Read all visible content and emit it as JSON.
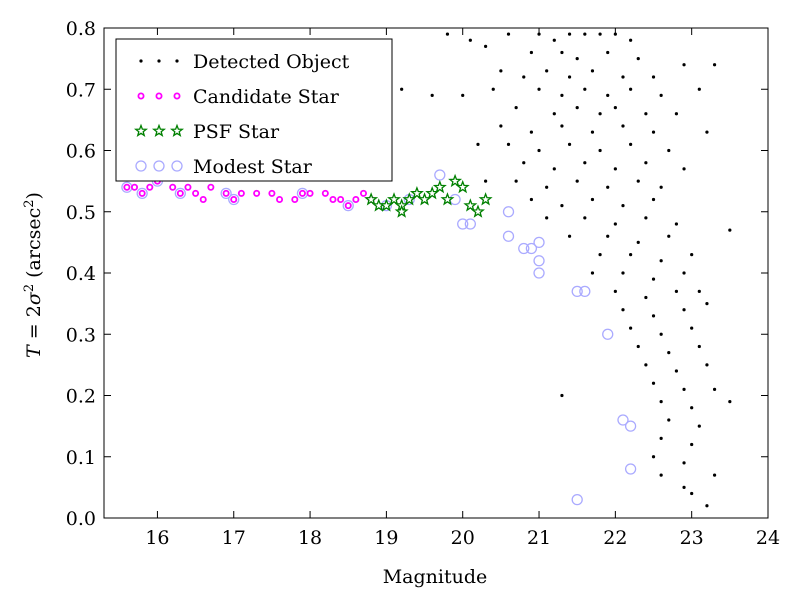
{
  "chart_data": {
    "type": "scatter",
    "title": "",
    "xlabel": "Magnitude",
    "ylabel": "T = 2σ² (arcsec²)",
    "ylabel_parts": {
      "lhs": "T",
      "eq": " = 2",
      "sigma": "σ",
      "sq": "2",
      "open": " (arcsec",
      "sq2": "2",
      "close": ")"
    },
    "xlim": [
      15.3,
      24
    ],
    "ylim": [
      0.0,
      0.8
    ],
    "xticks": [
      16,
      17,
      18,
      19,
      20,
      21,
      22,
      23,
      24
    ],
    "yticks": [
      0.0,
      0.1,
      0.2,
      0.3,
      0.4,
      0.5,
      0.6,
      0.7,
      0.8
    ],
    "grid": false,
    "legend_position": "top-left",
    "series": [
      {
        "name": "Detected Object",
        "marker": "dot",
        "color": "#000000",
        "points": [
          [
            19.8,
            0.79
          ],
          [
            20.1,
            0.78
          ],
          [
            20.3,
            0.77
          ],
          [
            20.6,
            0.79
          ],
          [
            21.0,
            0.79
          ],
          [
            21.2,
            0.78
          ],
          [
            21.4,
            0.79
          ],
          [
            21.6,
            0.79
          ],
          [
            21.8,
            0.79
          ],
          [
            22.0,
            0.79
          ],
          [
            22.2,
            0.78
          ],
          [
            20.9,
            0.76
          ],
          [
            21.3,
            0.76
          ],
          [
            21.5,
            0.75
          ],
          [
            21.9,
            0.76
          ],
          [
            22.3,
            0.75
          ],
          [
            22.9,
            0.74
          ],
          [
            23.3,
            0.74
          ],
          [
            20.5,
            0.73
          ],
          [
            20.8,
            0.72
          ],
          [
            21.1,
            0.73
          ],
          [
            21.4,
            0.72
          ],
          [
            21.7,
            0.73
          ],
          [
            22.1,
            0.72
          ],
          [
            22.5,
            0.72
          ],
          [
            19.2,
            0.7
          ],
          [
            19.6,
            0.69
          ],
          [
            20.0,
            0.69
          ],
          [
            20.4,
            0.7
          ],
          [
            21.0,
            0.7
          ],
          [
            21.3,
            0.69
          ],
          [
            21.6,
            0.7
          ],
          [
            21.9,
            0.69
          ],
          [
            22.2,
            0.7
          ],
          [
            22.6,
            0.69
          ],
          [
            23.1,
            0.7
          ],
          [
            20.7,
            0.67
          ],
          [
            21.2,
            0.66
          ],
          [
            21.5,
            0.67
          ],
          [
            21.8,
            0.66
          ],
          [
            22.0,
            0.67
          ],
          [
            22.4,
            0.66
          ],
          [
            22.8,
            0.66
          ],
          [
            20.5,
            0.64
          ],
          [
            20.9,
            0.63
          ],
          [
            21.3,
            0.64
          ],
          [
            21.7,
            0.63
          ],
          [
            22.1,
            0.64
          ],
          [
            22.5,
            0.63
          ],
          [
            23.2,
            0.63
          ],
          [
            20.2,
            0.61
          ],
          [
            20.6,
            0.61
          ],
          [
            21.0,
            0.6
          ],
          [
            21.4,
            0.61
          ],
          [
            21.8,
            0.6
          ],
          [
            22.2,
            0.61
          ],
          [
            22.7,
            0.6
          ],
          [
            20.8,
            0.58
          ],
          [
            21.2,
            0.57
          ],
          [
            21.6,
            0.58
          ],
          [
            22.0,
            0.57
          ],
          [
            22.4,
            0.58
          ],
          [
            22.9,
            0.57
          ],
          [
            20.3,
            0.55
          ],
          [
            20.7,
            0.55
          ],
          [
            21.1,
            0.54
          ],
          [
            21.5,
            0.55
          ],
          [
            21.9,
            0.54
          ],
          [
            22.3,
            0.55
          ],
          [
            22.6,
            0.54
          ],
          [
            20.9,
            0.52
          ],
          [
            21.3,
            0.51
          ],
          [
            21.7,
            0.52
          ],
          [
            22.1,
            0.51
          ],
          [
            22.5,
            0.52
          ],
          [
            21.1,
            0.49
          ],
          [
            21.6,
            0.49
          ],
          [
            22.0,
            0.48
          ],
          [
            22.4,
            0.49
          ],
          [
            22.8,
            0.48
          ],
          [
            21.4,
            0.46
          ],
          [
            21.9,
            0.46
          ],
          [
            22.3,
            0.45
          ],
          [
            22.7,
            0.46
          ],
          [
            21.8,
            0.43
          ],
          [
            22.2,
            0.43
          ],
          [
            22.6,
            0.42
          ],
          [
            23.0,
            0.43
          ],
          [
            23.5,
            0.47
          ],
          [
            21.7,
            0.4
          ],
          [
            22.1,
            0.4
          ],
          [
            22.5,
            0.39
          ],
          [
            22.9,
            0.4
          ],
          [
            22.0,
            0.37
          ],
          [
            22.4,
            0.36
          ],
          [
            22.8,
            0.37
          ],
          [
            23.1,
            0.37
          ],
          [
            22.1,
            0.34
          ],
          [
            22.5,
            0.33
          ],
          [
            22.9,
            0.34
          ],
          [
            23.2,
            0.35
          ],
          [
            22.2,
            0.31
          ],
          [
            22.6,
            0.3
          ],
          [
            23.0,
            0.31
          ],
          [
            22.3,
            0.28
          ],
          [
            22.7,
            0.27
          ],
          [
            23.1,
            0.28
          ],
          [
            22.4,
            0.25
          ],
          [
            22.8,
            0.24
          ],
          [
            23.2,
            0.25
          ],
          [
            22.5,
            0.22
          ],
          [
            22.9,
            0.21
          ],
          [
            23.3,
            0.21
          ],
          [
            23.5,
            0.19
          ],
          [
            21.3,
            0.2
          ],
          [
            22.6,
            0.19
          ],
          [
            23.0,
            0.18
          ],
          [
            22.7,
            0.16
          ],
          [
            23.1,
            0.15
          ],
          [
            22.6,
            0.13
          ],
          [
            23.0,
            0.12
          ],
          [
            22.5,
            0.1
          ],
          [
            22.9,
            0.09
          ],
          [
            23.3,
            0.07
          ],
          [
            22.6,
            0.07
          ],
          [
            22.9,
            0.05
          ],
          [
            23.2,
            0.02
          ],
          [
            23.0,
            0.04
          ]
        ]
      },
      {
        "name": "Candidate Star",
        "marker": "circle",
        "color": "#ff00ff",
        "points": [
          [
            15.6,
            0.54
          ],
          [
            15.7,
            0.54
          ],
          [
            15.8,
            0.53
          ],
          [
            15.9,
            0.54
          ],
          [
            16.0,
            0.55
          ],
          [
            16.2,
            0.54
          ],
          [
            16.3,
            0.53
          ],
          [
            16.4,
            0.54
          ],
          [
            16.5,
            0.53
          ],
          [
            16.6,
            0.52
          ],
          [
            16.7,
            0.54
          ],
          [
            16.9,
            0.53
          ],
          [
            17.0,
            0.52
          ],
          [
            17.1,
            0.53
          ],
          [
            17.3,
            0.53
          ],
          [
            17.5,
            0.53
          ],
          [
            17.6,
            0.52
          ],
          [
            17.8,
            0.52
          ],
          [
            17.9,
            0.53
          ],
          [
            18.0,
            0.53
          ],
          [
            18.2,
            0.53
          ],
          [
            18.3,
            0.52
          ],
          [
            18.4,
            0.52
          ],
          [
            18.5,
            0.51
          ],
          [
            18.6,
            0.52
          ],
          [
            18.7,
            0.53
          ],
          [
            18.8,
            0.52
          ]
        ]
      },
      {
        "name": "PSF Star",
        "marker": "star",
        "color": "#008000",
        "points": [
          [
            18.8,
            0.52
          ],
          [
            18.9,
            0.51
          ],
          [
            19.0,
            0.51
          ],
          [
            19.1,
            0.52
          ],
          [
            19.2,
            0.51
          ],
          [
            19.2,
            0.5
          ],
          [
            19.3,
            0.52
          ],
          [
            19.4,
            0.53
          ],
          [
            19.5,
            0.52
          ],
          [
            19.6,
            0.53
          ],
          [
            19.7,
            0.54
          ],
          [
            19.8,
            0.52
          ],
          [
            19.9,
            0.55
          ],
          [
            20.0,
            0.54
          ],
          [
            20.1,
            0.51
          ],
          [
            20.2,
            0.5
          ],
          [
            20.3,
            0.52
          ]
        ]
      },
      {
        "name": "Modest Star",
        "marker": "open-circle",
        "color": "#aaaaff",
        "points": [
          [
            15.6,
            0.54
          ],
          [
            15.8,
            0.53
          ],
          [
            16.0,
            0.55
          ],
          [
            16.3,
            0.53
          ],
          [
            16.9,
            0.53
          ],
          [
            17.0,
            0.52
          ],
          [
            17.9,
            0.53
          ],
          [
            18.5,
            0.51
          ],
          [
            19.0,
            0.51
          ],
          [
            19.3,
            0.52
          ],
          [
            19.7,
            0.56
          ],
          [
            19.9,
            0.52
          ],
          [
            20.0,
            0.48
          ],
          [
            20.1,
            0.48
          ],
          [
            20.6,
            0.5
          ],
          [
            20.6,
            0.46
          ],
          [
            20.8,
            0.44
          ],
          [
            20.9,
            0.44
          ],
          [
            21.0,
            0.45
          ],
          [
            21.0,
            0.42
          ],
          [
            21.0,
            0.4
          ],
          [
            21.5,
            0.37
          ],
          [
            21.6,
            0.37
          ],
          [
            21.9,
            0.3
          ],
          [
            22.1,
            0.16
          ],
          [
            22.2,
            0.15
          ],
          [
            22.2,
            0.08
          ],
          [
            21.5,
            0.03
          ]
        ]
      }
    ]
  }
}
